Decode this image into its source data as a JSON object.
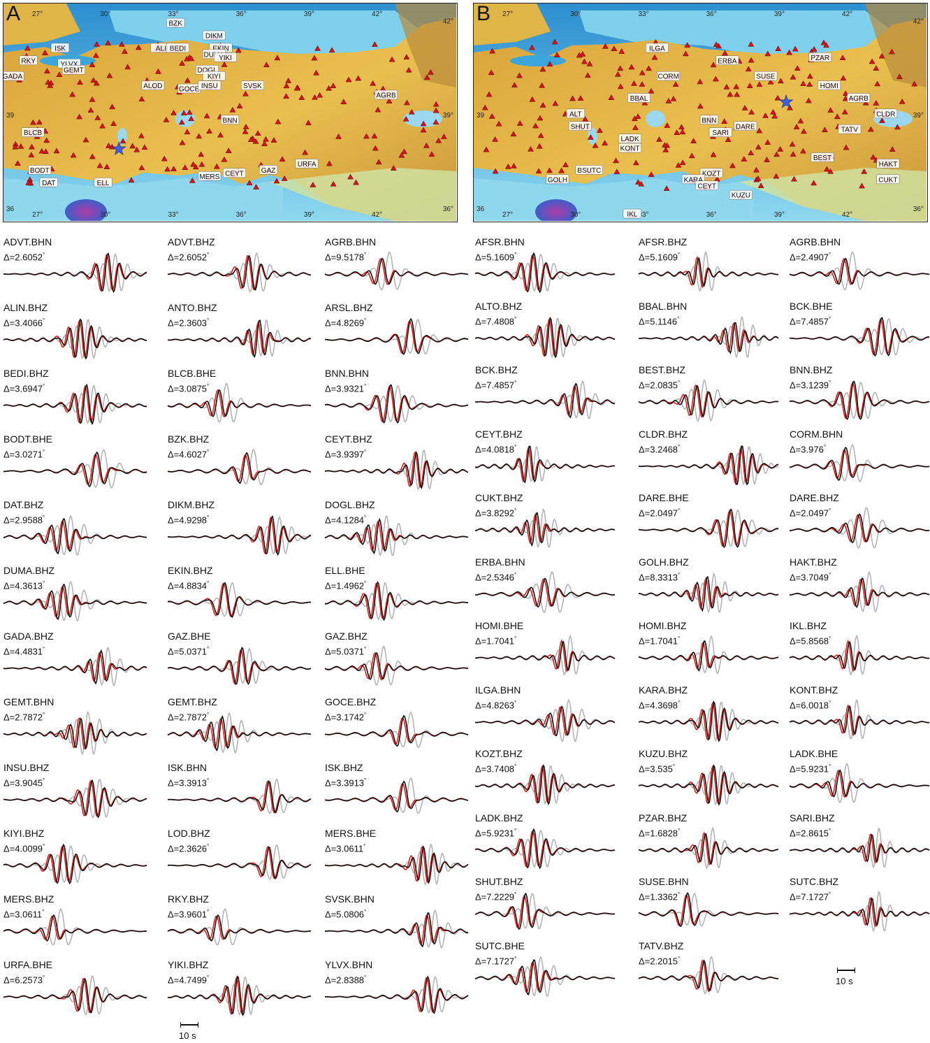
{
  "panels": [
    {
      "letter": "A",
      "map": {
        "lon_labels": [
          "27",
          "30",
          "33",
          "36",
          "39",
          "42"
        ],
        "lat_labels_left": [
          "39",
          "36"
        ],
        "lat_labels_right": [
          "42",
          "39",
          "36"
        ],
        "stations": [
          {
            "name": "BZK",
            "lon": 33.1,
            "lat": 41.9
          },
          {
            "name": "DIKM",
            "lon": 34.8,
            "lat": 41.5
          },
          {
            "name": "ISK",
            "lon": 28.0,
            "lat": 41.1
          },
          {
            "name": "ALII",
            "lon": 32.5,
            "lat": 41.1
          },
          {
            "name": "BEDI",
            "lon": 33.2,
            "lat": 41.1
          },
          {
            "name": "EKIN",
            "lon": 35.1,
            "lat": 41.1
          },
          {
            "name": "DUMA",
            "lon": 34.8,
            "lat": 40.9
          },
          {
            "name": "YIKI",
            "lon": 35.3,
            "lat": 40.8
          },
          {
            "name": "RKY",
            "lon": 26.6,
            "lat": 40.7
          },
          {
            "name": "YLVX",
            "lon": 28.4,
            "lat": 40.6
          },
          {
            "name": "GEMT",
            "lon": 28.6,
            "lat": 40.4
          },
          {
            "name": "GADA",
            "lon": 25.9,
            "lat": 40.2
          },
          {
            "name": "DOGL",
            "lon": 34.5,
            "lat": 40.4
          },
          {
            "name": "KIYI",
            "lon": 34.8,
            "lat": 40.2
          },
          {
            "name": "ALOD",
            "lon": 32.1,
            "lat": 39.9
          },
          {
            "name": "GOCE",
            "lon": 33.7,
            "lat": 39.8
          },
          {
            "name": "INSU",
            "lon": 34.6,
            "lat": 39.9
          },
          {
            "name": "SVSK",
            "lon": 36.5,
            "lat": 39.9
          },
          {
            "name": "AGRB",
            "lon": 42.4,
            "lat": 39.6
          },
          {
            "name": "BNN",
            "lon": 35.5,
            "lat": 38.8
          },
          {
            "name": "BLCB",
            "lon": 26.8,
            "lat": 38.4
          },
          {
            "name": "URFA",
            "lon": 38.9,
            "lat": 37.4
          },
          {
            "name": "BODT",
            "lon": 27.1,
            "lat": 37.2
          },
          {
            "name": "DAT",
            "lon": 27.5,
            "lat": 36.8
          },
          {
            "name": "ELL",
            "lon": 29.9,
            "lat": 36.8
          },
          {
            "name": "MERS",
            "lon": 34.6,
            "lat": 37.0
          },
          {
            "name": "CEYT",
            "lon": 35.7,
            "lat": 37.1
          },
          {
            "name": "GAZ",
            "lon": 37.2,
            "lat": 37.2
          }
        ],
        "event": {
          "lon": 30.6,
          "lat": 37.9
        }
      },
      "traces": [
        {
          "label": "ADVT.BHN",
          "dist": "Δ=2.6052"
        },
        {
          "label": "ALIN.BHZ",
          "dist": "Δ=3.4066"
        },
        {
          "label": "BEDI.BHZ",
          "dist": "Δ=3.6947"
        },
        {
          "label": "BODT.BHE",
          "dist": "Δ=3.0271"
        },
        {
          "label": "DAT.BHZ",
          "dist": "Δ=2.9588"
        },
        {
          "label": "DUMA.BHZ",
          "dist": "Δ=4.3613"
        },
        {
          "label": "GADA.BHZ",
          "dist": "Δ=4.4831"
        },
        {
          "label": "GEMT.BHN",
          "dist": "Δ=2.7872"
        },
        {
          "label": "INSU.BHZ",
          "dist": "Δ=3.9045"
        },
        {
          "label": "KIYI.BHZ",
          "dist": "Δ=4.0099"
        },
        {
          "label": "MERS.BHZ",
          "dist": "Δ=3.0611"
        },
        {
          "label": "URFA.BHE",
          "dist": "Δ=6.2573"
        },
        {
          "label": "ADVT.BHZ",
          "dist": "Δ=2.6052"
        },
        {
          "label": "ANTO.BHZ",
          "dist": "Δ=2.3603"
        },
        {
          "label": "BLCB.BHE",
          "dist": "Δ=3.0875"
        },
        {
          "label": "BZK.BHZ",
          "dist": "Δ=4.6027"
        },
        {
          "label": "DIKM.BHZ",
          "dist": "Δ=4.9298"
        },
        {
          "label": "EKIN.BHZ",
          "dist": "Δ=4.8834"
        },
        {
          "label": "GAZ.BHE",
          "dist": "Δ=5.0371"
        },
        {
          "label": "GEMT.BHZ",
          "dist": "Δ=2.7872"
        },
        {
          "label": "ISK.BHN",
          "dist": "Δ=3.3913"
        },
        {
          "label": "LOD.BHZ",
          "dist": "Δ=2.3626"
        },
        {
          "label": "RKY.BHZ",
          "dist": "Δ=3.9601"
        },
        {
          "label": "YIKI.BHZ",
          "dist": "Δ=4.7499"
        },
        {
          "label": "AGRB.BHN",
          "dist": "Δ=9.5178"
        },
        {
          "label": "ARSL.BHZ",
          "dist": "Δ=4.8269"
        },
        {
          "label": "BNN.BHN",
          "dist": "Δ=3.9321"
        },
        {
          "label": "CEYT.BHZ",
          "dist": "Δ=3.9397"
        },
        {
          "label": "DOGL.BHZ",
          "dist": "Δ=4.1284"
        },
        {
          "label": "ELL.BHE",
          "dist": "Δ=1.4962"
        },
        {
          "label": "GAZ.BHZ",
          "dist": "Δ=5.0371"
        },
        {
          "label": "GOCE.BHZ",
          "dist": "Δ=3.1742"
        },
        {
          "label": "ISK.BHZ",
          "dist": "Δ=3.3913"
        },
        {
          "label": "MERS.BHE",
          "dist": "Δ=3.0611"
        },
        {
          "label": "SVSK.BHN",
          "dist": "Δ=5.0806"
        },
        {
          "label": "YLVX.BHN",
          "dist": "Δ=2.8388"
        }
      ],
      "scale_label": "10 s"
    },
    {
      "letter": "B",
      "map": {
        "lon_labels": [
          "27",
          "30",
          "33",
          "36",
          "39",
          "42"
        ],
        "lat_labels_left": [
          "39",
          "36"
        ],
        "lat_labels_right": [
          "42",
          "39",
          "36"
        ],
        "stations": [
          {
            "name": "ILGA",
            "lon": 33.6,
            "lat": 41.1
          },
          {
            "name": "ERBA",
            "lon": 36.7,
            "lat": 40.7
          },
          {
            "name": "PZAR",
            "lon": 40.8,
            "lat": 40.8
          },
          {
            "name": "CORM",
            "lon": 34.1,
            "lat": 40.2
          },
          {
            "name": "SUSE",
            "lon": 38.4,
            "lat": 40.2
          },
          {
            "name": "HOMI",
            "lon": 41.2,
            "lat": 39.9
          },
          {
            "name": "BBAL",
            "lon": 32.8,
            "lat": 39.5
          },
          {
            "name": "AGRB",
            "lon": 42.5,
            "lat": 39.5
          },
          {
            "name": "ALT",
            "lon": 30.0,
            "lat": 39.0
          },
          {
            "name": "CLDR",
            "lon": 43.7,
            "lat": 39.0
          },
          {
            "name": "BNN",
            "lon": 35.9,
            "lat": 38.8
          },
          {
            "name": "SHUT",
            "lon": 30.2,
            "lat": 38.6
          },
          {
            "name": "SARI",
            "lon": 36.4,
            "lat": 38.4
          },
          {
            "name": "DARE",
            "lon": 37.5,
            "lat": 38.6
          },
          {
            "name": "TATV",
            "lon": 42.1,
            "lat": 38.5
          },
          {
            "name": "LADK",
            "lon": 32.4,
            "lat": 38.2
          },
          {
            "name": "KONT",
            "lon": 32.4,
            "lat": 37.9
          },
          {
            "name": "BEST",
            "lon": 40.9,
            "lat": 37.6
          },
          {
            "name": "HAKT",
            "lon": 43.8,
            "lat": 37.4
          },
          {
            "name": "BSUTC",
            "lon": 30.6,
            "lat": 37.2
          },
          {
            "name": "KOZT",
            "lon": 36.0,
            "lat": 37.1
          },
          {
            "name": "GOLH",
            "lon": 29.2,
            "lat": 36.9
          },
          {
            "name": "KARA",
            "lon": 35.2,
            "lat": 36.9
          },
          {
            "name": "CUKT",
            "lon": 43.8,
            "lat": 36.9
          },
          {
            "name": "CEYT",
            "lon": 35.8,
            "lat": 36.7
          },
          {
            "name": "KUZU",
            "lon": 37.3,
            "lat": 36.4
          },
          {
            "name": "IKL",
            "lon": 32.5,
            "lat": 35.8
          }
        ],
        "event": {
          "lon": 39.3,
          "lat": 39.4
        }
      },
      "traces": [
        {
          "label": "AFSR.BHN",
          "dist": "Δ=5.1609"
        },
        {
          "label": "ALTO.BHZ",
          "dist": "Δ=7.4808"
        },
        {
          "label": "BCK.BHZ",
          "dist": "Δ=7.4857"
        },
        {
          "label": "CEYT.BHZ",
          "dist": "Δ=4.0818"
        },
        {
          "label": "CUKT.BHZ",
          "dist": "Δ=3.8292"
        },
        {
          "label": "ERBA.BHN",
          "dist": "Δ=2.5346"
        },
        {
          "label": "HOMI.BHE",
          "dist": "Δ=1.7041"
        },
        {
          "label": "ILGA.BHN",
          "dist": "Δ=4.8263"
        },
        {
          "label": "KOZT.BHZ",
          "dist": "Δ=3.7408"
        },
        {
          "label": "LADK.BHZ",
          "dist": "Δ=5.9231"
        },
        {
          "label": "SHUT.BHZ",
          "dist": "Δ=7.2229"
        },
        {
          "label": "SUTC.BHE",
          "dist": "Δ=7.1727"
        },
        {
          "label": "AFSR.BHZ",
          "dist": "Δ=5.1609"
        },
        {
          "label": "BBAL.BHN",
          "dist": "Δ=5.1146"
        },
        {
          "label": "BEST.BHZ",
          "dist": "Δ=2.0835"
        },
        {
          "label": "CLDR.BHZ",
          "dist": "Δ=3.2468"
        },
        {
          "label": "DARE.BHE",
          "dist": "Δ=2.0497"
        },
        {
          "label": "GOLH.BHZ",
          "dist": "Δ=8.3313"
        },
        {
          "label": "HOMI.BHZ",
          "dist": "Δ=1.7041"
        },
        {
          "label": "KARA.BHZ",
          "dist": "Δ=4.3698"
        },
        {
          "label": "KUZU.BHZ",
          "dist": "Δ=3.535"
        },
        {
          "label": "PZAR.BHZ",
          "dist": "Δ=1.6828"
        },
        {
          "label": "SUSE.BHN",
          "dist": "Δ=1.3362"
        },
        {
          "label": "TATV.BHZ",
          "dist": "Δ=2.2015"
        },
        {
          "label": "AGRB.BHN",
          "dist": "Δ=2.4907"
        },
        {
          "label": "BCK.BHE",
          "dist": "Δ=7.4857"
        },
        {
          "label": "BNN.BHZ",
          "dist": "Δ=3.1239"
        },
        {
          "label": "CORM.BHN",
          "dist": "Δ=3.976"
        },
        {
          "label": "DARE.BHZ",
          "dist": "Δ=2.0497"
        },
        {
          "label": "HAKT.BHZ",
          "dist": "Δ=3.7049"
        },
        {
          "label": "IKL.BHZ",
          "dist": "Δ=5.8568"
        },
        {
          "label": "KONT.BHZ",
          "dist": "Δ=6.0018"
        },
        {
          "label": "LADK.BHE",
          "dist": "Δ=5.9231"
        },
        {
          "label": "SARI.BHZ",
          "dist": "Δ=2.8615"
        },
        {
          "label": "SUTC.BHZ",
          "dist": "Δ=7.1727"
        }
      ],
      "scale_label": "10 s"
    }
  ],
  "colors": {
    "observed": "#111111",
    "synthetic_red": "#e0201b",
    "synthetic_gray": "#b4b4b4",
    "station_marker": "#d4141a",
    "event_star": "#3f5fd6",
    "sea": "#6ec9e6",
    "land": "#e3b23c"
  }
}
